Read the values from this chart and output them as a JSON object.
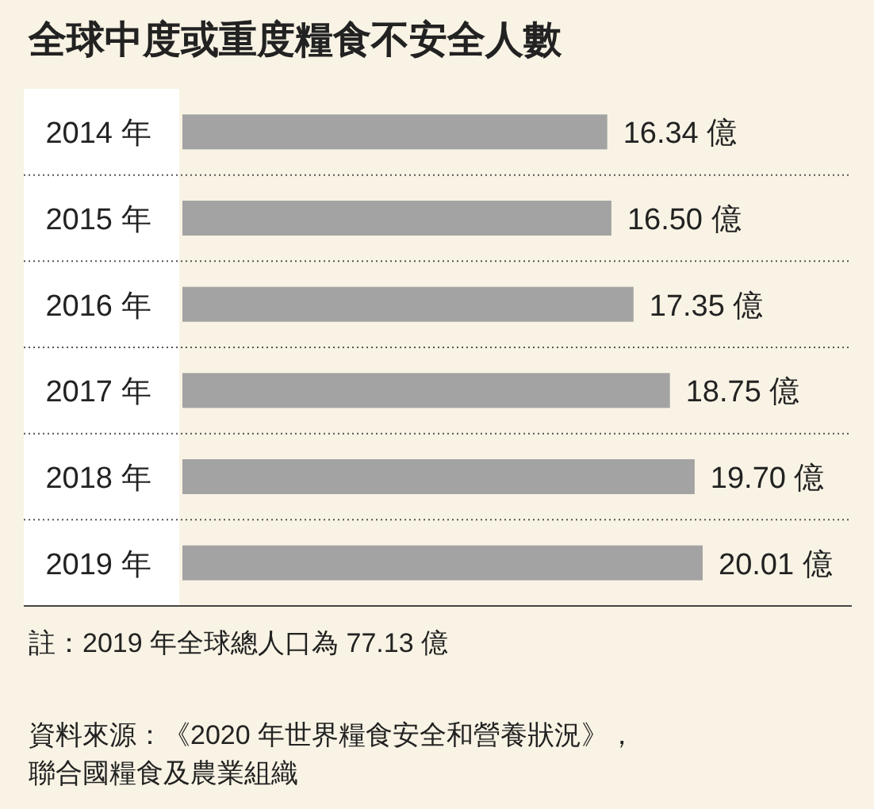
{
  "chart_data": {
    "type": "bar",
    "orientation": "horizontal",
    "title": "全球中度或重度糧食不安全人數",
    "categories": [
      "2014 年",
      "2015 年",
      "2016 年",
      "2017 年",
      "2018 年",
      "2019 年"
    ],
    "values": [
      16.34,
      16.5,
      17.35,
      18.75,
      19.7,
      20.01
    ],
    "value_labels": [
      "16.34 億",
      "16.50 億",
      "17.35 億",
      "18.75 億",
      "19.70 億",
      "20.01 億"
    ],
    "color": "#a3a3a3",
    "annotations": [
      "註：2019 年全球總人口為 77.13 億",
      "資料來源：《2020 年世界糧食安全和營養狀況》，",
      "聯合國糧食及農業組織"
    ]
  }
}
